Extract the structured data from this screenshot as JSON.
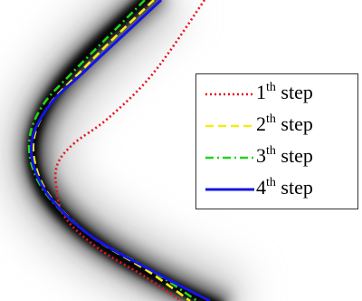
{
  "chart_data": {
    "type": "line",
    "title": "",
    "xlabel": "",
    "ylabel": "",
    "grid": false,
    "legend_position": "right",
    "background": "gray-blur-ridge",
    "series": [
      {
        "num": "1",
        "sup": "th",
        "word": "step",
        "color": "#e8141e",
        "dash": "2,3",
        "points": [
          [
            226,
            0
          ],
          [
            170,
            80
          ],
          [
            120,
            130
          ],
          [
            82,
            158
          ],
          [
            64,
            180
          ],
          [
            62,
            205
          ],
          [
            72,
            240
          ],
          [
            110,
            275
          ],
          [
            160,
            305
          ],
          [
            200,
            332
          ]
        ]
      },
      {
        "num": "2",
        "sup": "th",
        "word": "step",
        "color": "#f2ec1c",
        "dash": "9,5",
        "points": [
          [
            170,
            0
          ],
          [
            128,
            40
          ],
          [
            88,
            80
          ],
          [
            55,
            115
          ],
          [
            38,
            150
          ],
          [
            40,
            185
          ],
          [
            58,
            220
          ],
          [
            100,
            260
          ],
          [
            165,
            300
          ],
          [
            210,
            332
          ]
        ]
      },
      {
        "num": "3",
        "sup": "th",
        "word": "step",
        "color": "#22d31e",
        "dash": "9,4,2,4",
        "points": [
          [
            160,
            0
          ],
          [
            120,
            40
          ],
          [
            80,
            80
          ],
          [
            48,
            115
          ],
          [
            33,
            150
          ],
          [
            36,
            185
          ],
          [
            56,
            220
          ],
          [
            100,
            260
          ],
          [
            170,
            300
          ],
          [
            218,
            332
          ]
        ]
      },
      {
        "num": "4",
        "sup": "th",
        "word": "step",
        "color": "#1414e6",
        "dash": "",
        "points": [
          [
            178,
            0
          ],
          [
            135,
            40
          ],
          [
            92,
            80
          ],
          [
            58,
            112
          ],
          [
            37,
            148
          ],
          [
            37,
            182
          ],
          [
            57,
            220
          ],
          [
            103,
            262
          ],
          [
            180,
            305
          ],
          [
            232,
            332
          ]
        ]
      }
    ]
  }
}
